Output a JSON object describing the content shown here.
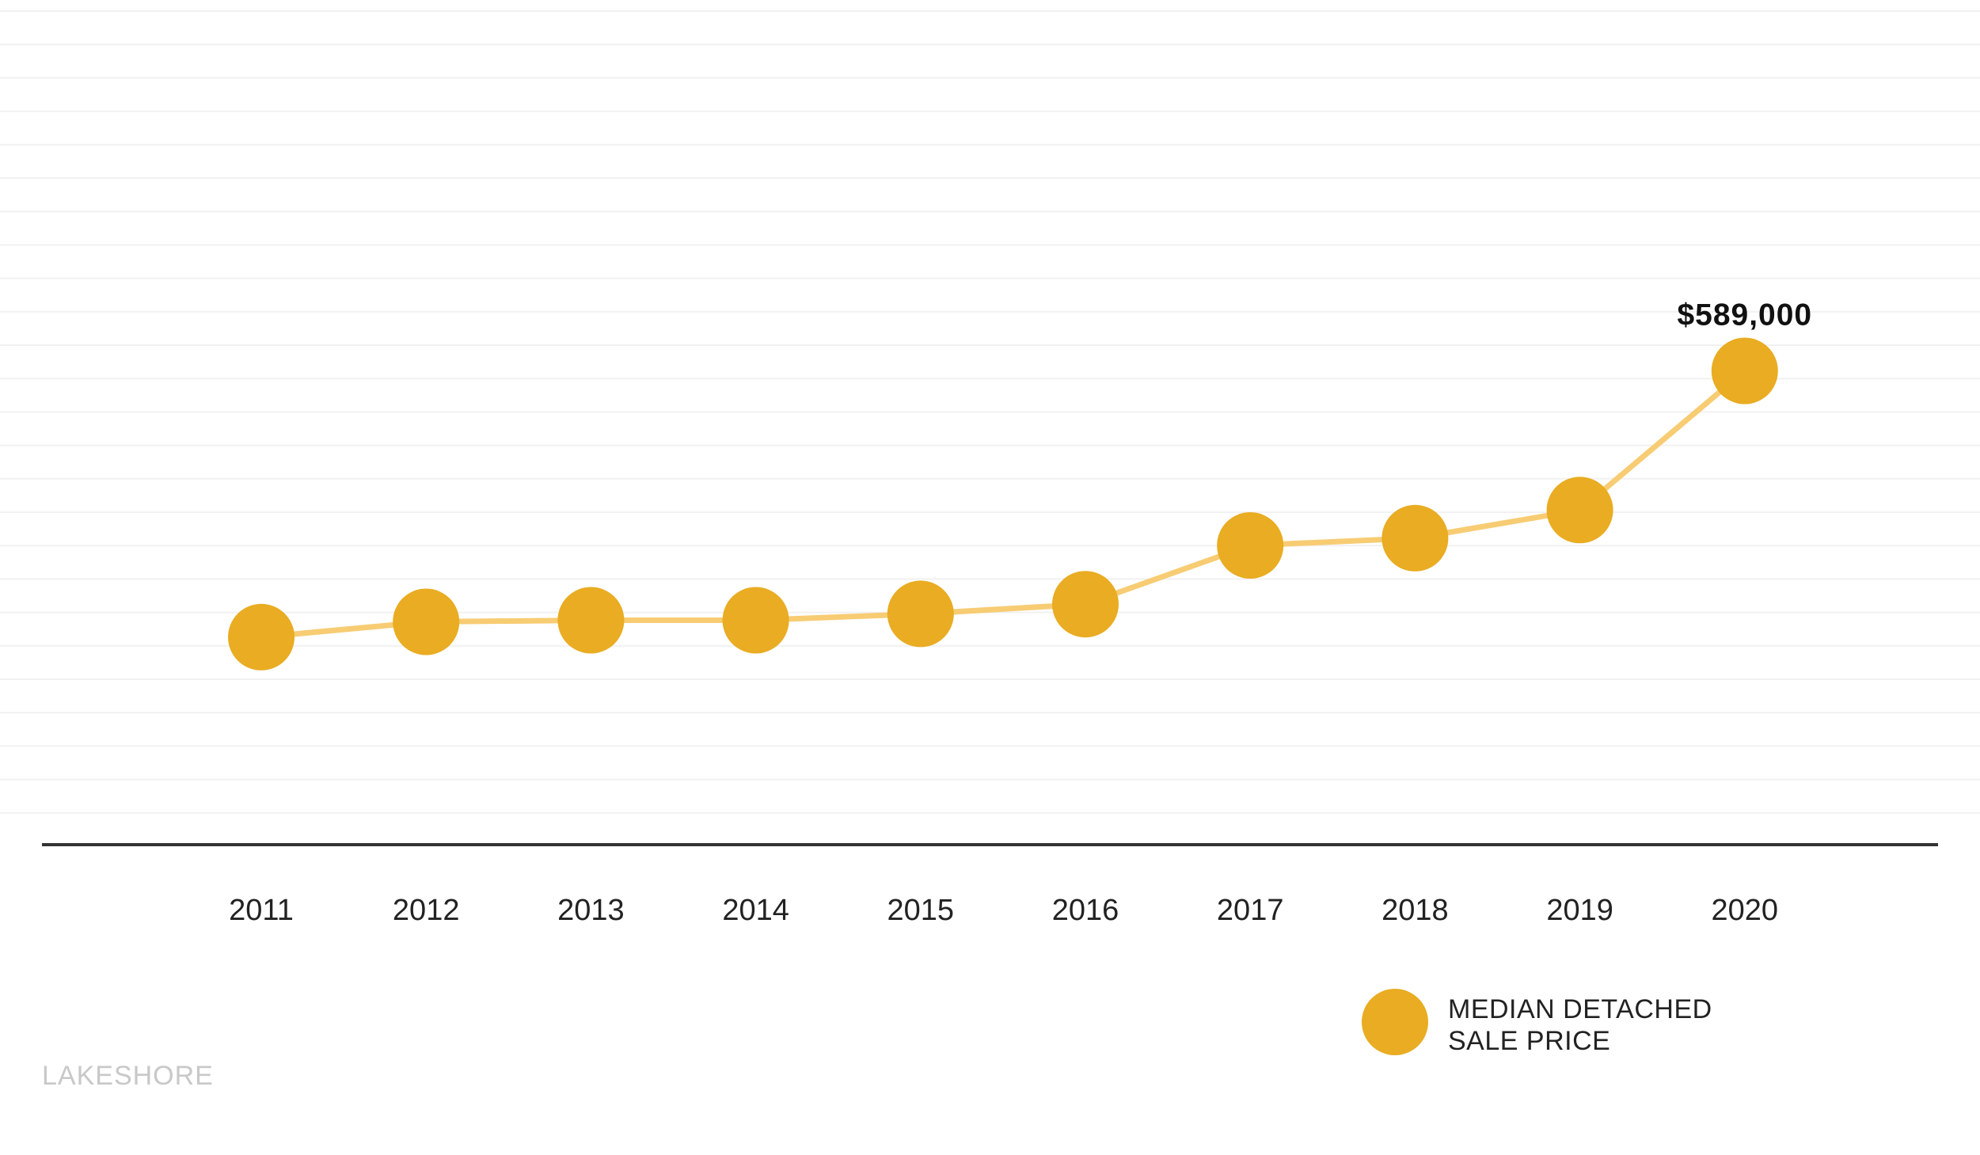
{
  "chart_data": {
    "type": "line",
    "x": [
      "2011",
      "2012",
      "2013",
      "2014",
      "2015",
      "2016",
      "2017",
      "2018",
      "2019",
      "2020"
    ],
    "series": [
      {
        "name": "MEDIAN DETACHED SALE PRICE",
        "values": [
          258000,
          277000,
          279000,
          279000,
          287000,
          299000,
          372000,
          381000,
          416000,
          589000
        ],
        "color": "#E9AC22",
        "line_color": "#F7CC73"
      }
    ],
    "annotations": [
      {
        "x": "2020",
        "text": "$589,000"
      }
    ],
    "ylim": [
      0,
      1050000
    ],
    "grid": true,
    "legend": {
      "position": "bottom-right",
      "lines": [
        "MEDIAN DETACHED",
        "SALE PRICE"
      ]
    },
    "title": "",
    "xlabel": "",
    "ylabel": ""
  },
  "watermark": "LAKESHORE"
}
